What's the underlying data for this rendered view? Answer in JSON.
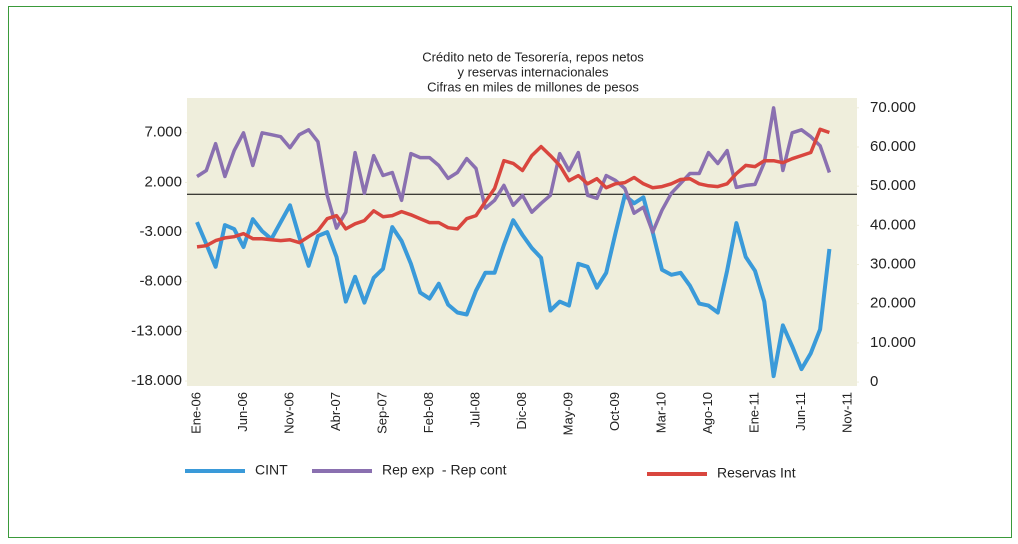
{
  "chart_data": {
    "type": "line",
    "title": [
      "Crédito neto de Tesorería, repos netos",
      "y reservas internacionales",
      "Cifras en miles de millones de pesos"
    ],
    "categories": [
      "Ene-06",
      null,
      null,
      null,
      null,
      "Jun-06",
      null,
      null,
      null,
      null,
      "Nov-06",
      null,
      null,
      null,
      null,
      "Abr-07",
      null,
      null,
      null,
      null,
      "Sep-07",
      null,
      null,
      null,
      null,
      "Feb-08",
      null,
      null,
      null,
      null,
      "Jul-08",
      null,
      null,
      null,
      null,
      "Dic-08",
      null,
      null,
      null,
      null,
      "May-09",
      null,
      null,
      null,
      null,
      "Oct-09",
      null,
      null,
      null,
      null,
      "Mar-10",
      null,
      null,
      null,
      null,
      "Ago-10",
      null,
      null,
      null,
      null,
      "Ene-11",
      null,
      null,
      null,
      null,
      "Jun-11",
      null,
      null,
      null,
      null,
      "Nov-11"
    ],
    "series": [
      {
        "name": "CINT",
        "color": "#3a9ad9",
        "axis": "y",
        "values": [
          -2000,
          -4200,
          -6500,
          -2300,
          -2700,
          -4500,
          -1700,
          -2900,
          -3700,
          -2000,
          -300,
          -3500,
          -6400,
          -3400,
          -3000,
          -5500,
          -10000,
          -7500,
          -10100,
          -7600,
          -6700,
          -2500,
          -3900,
          -6200,
          -9100,
          -9700,
          -8200,
          -10300,
          -11100,
          -11300,
          -8900,
          -7100,
          -7100,
          -4300,
          -1800,
          -3300,
          -4600,
          -5600,
          -10900,
          -10000,
          -10400,
          -6200,
          -6500,
          -8600,
          -7100,
          -3100,
          700,
          -100,
          500,
          -3000,
          -6800,
          -7300,
          -7100,
          -8400,
          -10200,
          -10400,
          -11100,
          -6900,
          -2100,
          -5500,
          -6900,
          -10000,
          -17500,
          -12400,
          -14500,
          -16800,
          -15200,
          -12800,
          -4700,
          null,
          null
        ]
      },
      {
        "name": "Rep exp  - Rep cont",
        "color": "#8a70b0",
        "axis": "y",
        "values": [
          2600,
          3200,
          5900,
          2600,
          5200,
          7000,
          3700,
          7000,
          6800,
          6600,
          5500,
          6800,
          7300,
          6100,
          700,
          -2600,
          -1000,
          5000,
          900,
          4700,
          2700,
          3000,
          200,
          4900,
          4500,
          4500,
          3700,
          2400,
          3000,
          4400,
          3400,
          -600,
          200,
          1700,
          -300,
          700,
          -1000,
          -100,
          700,
          4900,
          3200,
          5000,
          700,
          400,
          2700,
          2200,
          1400,
          -1100,
          -500,
          -3000,
          -800,
          900,
          1900,
          2900,
          2900,
          5000,
          3900,
          5200,
          1500,
          1700,
          1800,
          4000,
          9500,
          3200,
          7000,
          7300,
          6600,
          5700,
          3000,
          null,
          null
        ]
      },
      {
        "name": "Reservas Int",
        "color": "#d9463e",
        "axis": "y2",
        "values": [
          34500,
          34800,
          36100,
          36800,
          37100,
          37900,
          36600,
          36600,
          36300,
          36100,
          36300,
          35600,
          37100,
          38600,
          41700,
          42500,
          39100,
          40400,
          41200,
          43700,
          42200,
          42500,
          43500,
          42700,
          41700,
          40700,
          40700,
          39400,
          39100,
          41700,
          42500,
          46000,
          49400,
          56500,
          55800,
          54000,
          57800,
          60100,
          57800,
          55300,
          51400,
          52700,
          50600,
          51900,
          49600,
          50600,
          50900,
          52200,
          50600,
          49600,
          49900,
          50600,
          51700,
          51900,
          50600,
          50100,
          49900,
          50600,
          53200,
          55300,
          55000,
          56500,
          56500,
          56000,
          57000,
          57800,
          58600,
          64500,
          63700,
          null,
          null
        ]
      }
    ],
    "ylim": [
      -18500,
      10500
    ],
    "yticks": [
      {
        "value": -18000,
        "label": "-18.000"
      },
      {
        "value": -13000,
        "label": "-13.000"
      },
      {
        "value": -8000,
        "label": "-8.000"
      },
      {
        "value": -3000,
        "label": "-3.000"
      },
      {
        "value": 2000,
        "label": "2.000"
      },
      {
        "value": 7000,
        "label": "7.000"
      }
    ],
    "y2lim": [
      -1000,
      72500
    ],
    "y2ticks": [
      0,
      {
        "value": 10000,
        "label": "10.000"
      },
      {
        "value": 20000,
        "label": "20.000"
      },
      {
        "value": 30000,
        "label": "30.000"
      },
      {
        "value": 40000,
        "label": "40.000"
      },
      {
        "value": 50000,
        "label": "50.000"
      },
      {
        "value": 60000,
        "label": "60.000"
      },
      {
        "value": 70000,
        "label": "70.000"
      }
    ],
    "legend": "bottom"
  }
}
